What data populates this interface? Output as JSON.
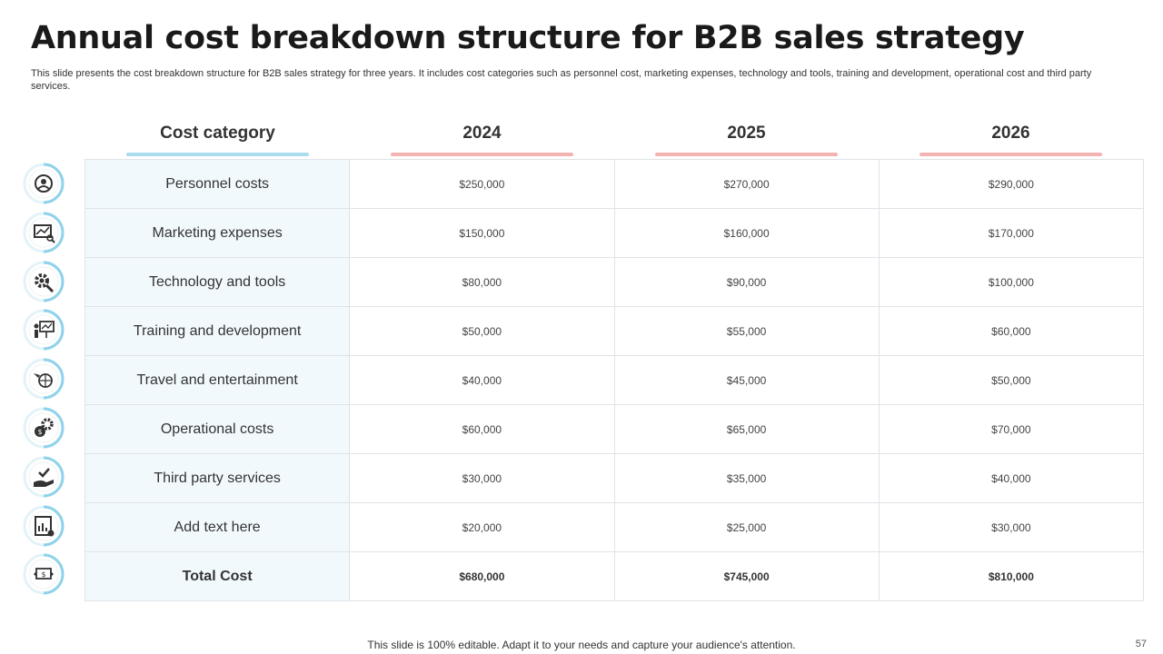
{
  "slide": {
    "title": "Annual cost breakdown structure for B2B sales strategy",
    "subtitle": "This slide presents the cost breakdown structure for B2B sales strategy for three years. It includes cost categories such as personnel cost, marketing expenses, technology and tools, training and development, operational cost and third party services.",
    "footer": "This slide is 100% editable. Adapt it to your needs and capture your audience's attention.",
    "page_number": "57"
  },
  "table": {
    "headers": [
      "Cost category",
      "2024",
      "2025",
      "2026"
    ],
    "rows": [
      {
        "category": "Personnel costs",
        "values": [
          "$250,000",
          "$270,000",
          "$290,000"
        ],
        "icon": "target-person-icon"
      },
      {
        "category": "Marketing expenses",
        "values": [
          "$150,000",
          "$160,000",
          "$170,000"
        ],
        "icon": "chart-magnifier-icon"
      },
      {
        "category": "Technology  and tools",
        "values": [
          "$80,000",
          "$90,000",
          "$100,000"
        ],
        "icon": "gear-wrench-icon"
      },
      {
        "category": "Training and development",
        "values": [
          "$50,000",
          "$55,000",
          "$60,000"
        ],
        "icon": "presentation-icon"
      },
      {
        "category": "Travel and entertainment",
        "values": [
          "$40,000",
          "$45,000",
          "$50,000"
        ],
        "icon": "globe-plane-icon"
      },
      {
        "category": "Operational costs",
        "values": [
          "$60,000",
          "$65,000",
          "$70,000"
        ],
        "icon": "gears-dollar-icon"
      },
      {
        "category": "Third party services",
        "values": [
          "$30,000",
          "$35,000",
          "$40,000"
        ],
        "icon": "hand-check-icon"
      },
      {
        "category": "Add text here",
        "values": [
          "$20,000",
          "$25,000",
          "$30,000"
        ],
        "icon": "report-icon"
      },
      {
        "category": "Total Cost",
        "values": [
          "$680,000",
          "$745,000",
          "$810,000"
        ],
        "icon": "money-exchange-icon"
      }
    ]
  },
  "colors": {
    "category_underline": "#a9dcec",
    "year_underline": "#f3b3b1",
    "category_column_bg": "#f2f9fd",
    "icon_ring": "#8fd3ea"
  }
}
